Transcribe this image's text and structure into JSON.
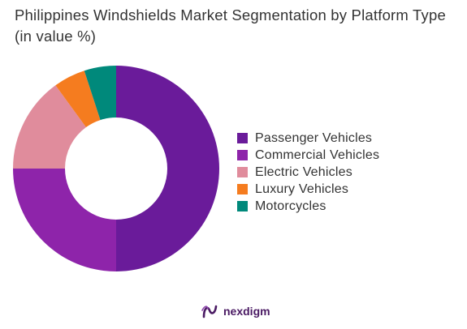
{
  "title": "Philippines Windshields Market Segmentation by Platform Type (in value %)",
  "brand": {
    "name": "nexdigm",
    "logo_icon": "nexdigm-logo-icon",
    "color": "#4a1a63"
  },
  "chart_data": {
    "type": "pie",
    "variant": "donut",
    "title": "Philippines Windshields Market Segmentation by Platform Type (in value %)",
    "categories": [
      "Passenger Vehicles",
      "Commercial Vehicles",
      "Electric Vehicles",
      "Luxury Vehicles",
      "Motorcycles"
    ],
    "values": [
      50,
      25,
      15,
      5,
      5
    ],
    "colors": [
      "#6a1b9a",
      "#8e24aa",
      "#e08c9c",
      "#f57c1f",
      "#00897b"
    ],
    "legend_position": "right",
    "start_angle_deg": 0,
    "direction": "clockwise"
  }
}
